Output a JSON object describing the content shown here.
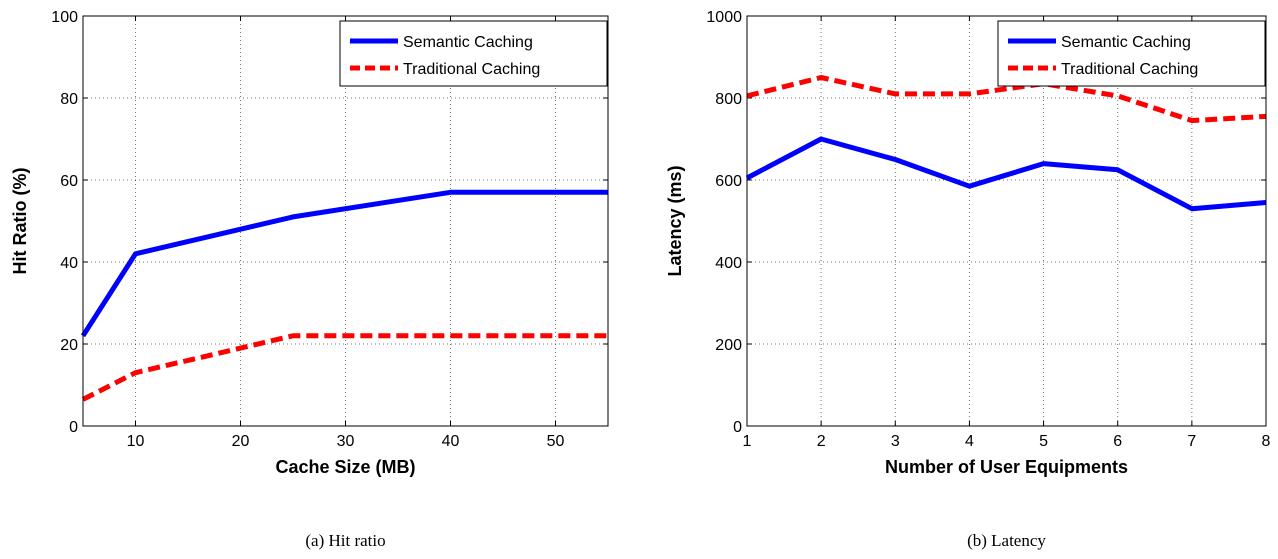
{
  "chart_data": [
    {
      "type": "line",
      "xlabel": "Cache Size (MB)",
      "ylabel": "Hit Ratio (%)",
      "xlim": [
        5,
        55
      ],
      "ylim": [
        0,
        100
      ],
      "xticks": [
        10,
        20,
        30,
        40,
        50
      ],
      "yticks": [
        0,
        20,
        40,
        60,
        80,
        100
      ],
      "grid": true,
      "legend_position": "top-right",
      "caption": "(a) Hit ratio",
      "series": [
        {
          "name": "Semantic Caching",
          "color": "#0000ff",
          "style": "solid",
          "x": [
            5,
            10,
            25,
            40,
            55
          ],
          "y": [
            22,
            42,
            51,
            57,
            57
          ]
        },
        {
          "name": "Traditional Caching",
          "color": "#ff0000",
          "style": "dashed",
          "x": [
            5,
            10,
            25,
            40,
            55
          ],
          "y": [
            6.5,
            13,
            22,
            22,
            22
          ]
        }
      ]
    },
    {
      "type": "line",
      "xlabel": "Number of User Equipments",
      "ylabel": "Latency (ms)",
      "xlim": [
        1,
        8
      ],
      "ylim": [
        0,
        1000
      ],
      "xticks": [
        1,
        2,
        3,
        4,
        5,
        6,
        7,
        8
      ],
      "yticks": [
        0,
        200,
        400,
        600,
        800,
        1000
      ],
      "grid": true,
      "legend_position": "top-right",
      "caption": "(b) Latency",
      "series": [
        {
          "name": "Semantic Caching",
          "color": "#0000ff",
          "style": "solid",
          "x": [
            1,
            2,
            3,
            4,
            5,
            6,
            7,
            8
          ],
          "y": [
            605,
            700,
            650,
            585,
            640,
            625,
            530,
            545
          ]
        },
        {
          "name": "Traditional Caching",
          "color": "#ff0000",
          "style": "dashed",
          "x": [
            1,
            2,
            3,
            4,
            5,
            6,
            7,
            8
          ],
          "y": [
            805,
            850,
            810,
            810,
            835,
            805,
            745,
            755
          ]
        }
      ]
    }
  ]
}
